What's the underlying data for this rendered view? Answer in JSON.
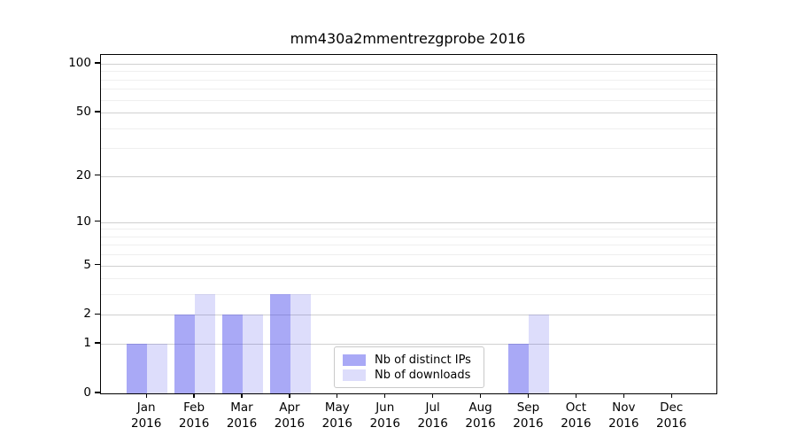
{
  "title": "mm430a2mmentrezgprobe 2016",
  "chart_data": {
    "type": "bar",
    "title": "mm430a2mmentrezgprobe 2016",
    "categories": [
      {
        "month": "Jan",
        "year": "2016"
      },
      {
        "month": "Feb",
        "year": "2016"
      },
      {
        "month": "Mar",
        "year": "2016"
      },
      {
        "month": "Apr",
        "year": "2016"
      },
      {
        "month": "May",
        "year": "2016"
      },
      {
        "month": "Jun",
        "year": "2016"
      },
      {
        "month": "Jul",
        "year": "2016"
      },
      {
        "month": "Aug",
        "year": "2016"
      },
      {
        "month": "Sep",
        "year": "2016"
      },
      {
        "month": "Oct",
        "year": "2016"
      },
      {
        "month": "Nov",
        "year": "2016"
      },
      {
        "month": "Dec",
        "year": "2016"
      }
    ],
    "series": [
      {
        "name": "Nb of distinct IPs",
        "color": "#a9a9f6",
        "color_rgba": "rgba(64,64,235,0.45)",
        "values": [
          1,
          2,
          2,
          3,
          0,
          0,
          0,
          0,
          1,
          0,
          0,
          0
        ]
      },
      {
        "name": "Nb of downloads",
        "color": "#dcdcf8",
        "color_rgba": "rgba(64,64,235,0.18)",
        "values": [
          1,
          3,
          2,
          3,
          0,
          0,
          0,
          0,
          2,
          0,
          0,
          0
        ]
      }
    ],
    "xlabel": "",
    "ylabel": "",
    "y_axis": {
      "scale": "log1p",
      "ticks": [
        0,
        1,
        2,
        5,
        10,
        20,
        50,
        100
      ],
      "minor_gridlines": [
        3,
        4,
        6,
        7,
        8,
        9,
        30,
        40,
        60,
        70,
        80,
        90
      ],
      "range": [
        0,
        115
      ]
    },
    "grid": {
      "orientation": "horizontal",
      "major_color": "#d0d0d0",
      "minor_color": "#efefef"
    },
    "legend": {
      "position": "lower-center",
      "items": [
        "Nb of distinct IPs",
        "Nb of downloads"
      ]
    }
  }
}
